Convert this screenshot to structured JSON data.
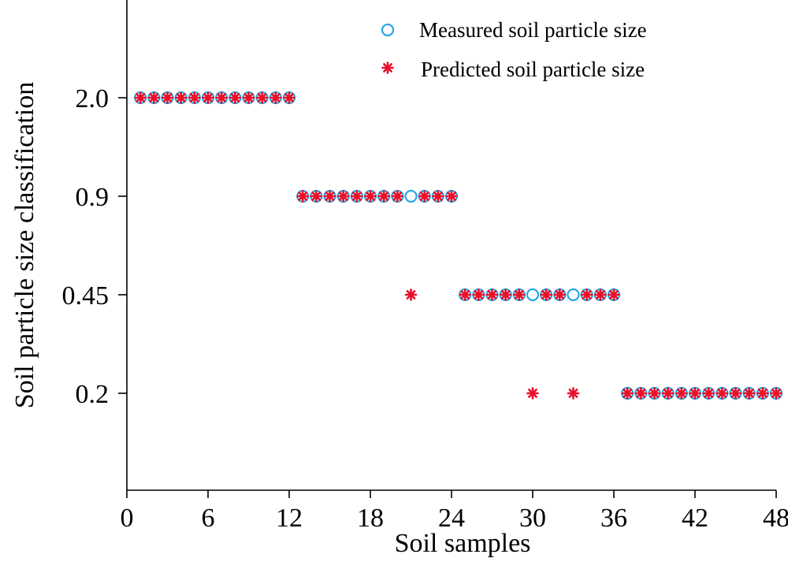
{
  "chart_data": {
    "type": "scatter",
    "title": "",
    "xlabel": "Soil samples",
    "ylabel": "Soil particle size classification",
    "xlim": [
      0,
      48
    ],
    "x_ticks": [
      "0",
      "6",
      "12",
      "18",
      "24",
      "30",
      "36",
      "42",
      "48"
    ],
    "y_categories": [
      "0.2",
      "0.45",
      "0.9",
      "2.0"
    ],
    "grid": false,
    "legend_position": "top-right",
    "series": [
      {
        "name": "Measured soil particle size",
        "marker": "circle",
        "color": "#29a8e0",
        "x": [
          1,
          2,
          3,
          4,
          5,
          6,
          7,
          8,
          9,
          10,
          11,
          12,
          13,
          14,
          15,
          16,
          17,
          18,
          19,
          20,
          21,
          22,
          23,
          24,
          25,
          26,
          27,
          28,
          29,
          30,
          31,
          32,
          33,
          34,
          35,
          36,
          37,
          38,
          39,
          40,
          41,
          42,
          43,
          44,
          45,
          46,
          47,
          48
        ],
        "values": [
          "2.0",
          "2.0",
          "2.0",
          "2.0",
          "2.0",
          "2.0",
          "2.0",
          "2.0",
          "2.0",
          "2.0",
          "2.0",
          "2.0",
          "0.9",
          "0.9",
          "0.9",
          "0.9",
          "0.9",
          "0.9",
          "0.9",
          "0.9",
          "0.9",
          "0.9",
          "0.9",
          "0.9",
          "0.45",
          "0.45",
          "0.45",
          "0.45",
          "0.45",
          "0.45",
          "0.45",
          "0.45",
          "0.45",
          "0.45",
          "0.45",
          "0.45",
          "0.2",
          "0.2",
          "0.2",
          "0.2",
          "0.2",
          "0.2",
          "0.2",
          "0.2",
          "0.2",
          "0.2",
          "0.2",
          "0.2"
        ]
      },
      {
        "name": "Predicted soil particle size",
        "marker": "asterisk",
        "color": "#e8102a",
        "x": [
          1,
          2,
          3,
          4,
          5,
          6,
          7,
          8,
          9,
          10,
          11,
          12,
          13,
          14,
          15,
          16,
          17,
          18,
          19,
          20,
          21,
          22,
          23,
          24,
          25,
          26,
          27,
          28,
          29,
          30,
          31,
          32,
          33,
          34,
          35,
          36,
          37,
          38,
          39,
          40,
          41,
          42,
          43,
          44,
          45,
          46,
          47,
          48
        ],
        "values": [
          "2.0",
          "2.0",
          "2.0",
          "2.0",
          "2.0",
          "2.0",
          "2.0",
          "2.0",
          "2.0",
          "2.0",
          "2.0",
          "2.0",
          "0.9",
          "0.9",
          "0.9",
          "0.9",
          "0.9",
          "0.9",
          "0.9",
          "0.9",
          "0.45",
          "0.9",
          "0.9",
          "0.9",
          "0.45",
          "0.45",
          "0.45",
          "0.45",
          "0.45",
          "0.2",
          "0.45",
          "0.45",
          "0.2",
          "0.45",
          "0.45",
          "0.45",
          "0.2",
          "0.2",
          "0.2",
          "0.2",
          "0.2",
          "0.2",
          "0.2",
          "0.2",
          "0.2",
          "0.2",
          "0.2",
          "0.2"
        ]
      }
    ]
  }
}
